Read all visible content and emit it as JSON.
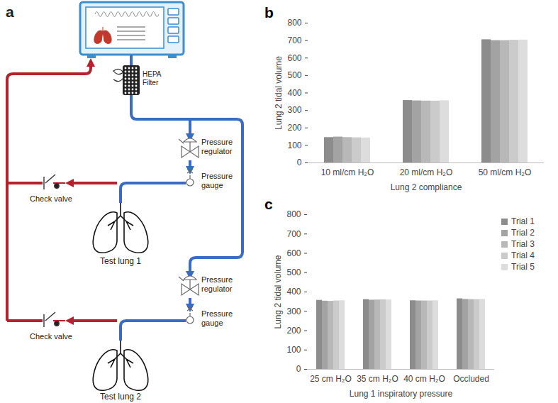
{
  "diagram": {
    "panel_label": "a",
    "components": {
      "filter": "HEPA Filter",
      "regulator_1": "Pressure regulator",
      "gauge_1": "Pressure gauge",
      "check_valve_1": "Check valve",
      "lung_1": "Test lung 1",
      "regulator_2": "Pressure regulator",
      "gauge_2": "Pressure gauge",
      "check_valve_2": "Check valve",
      "lung_2": "Test lung 2"
    }
  },
  "chart_data": [
    {
      "type": "bar",
      "title": "b",
      "xlabel": "Lung 2 compliance",
      "ylabel": "Lung 2 tidal volume",
      "categories": [
        "10 ml/cm H₂O",
        "20 ml/cm H₂O",
        "50 ml/cm H₂O"
      ],
      "series": [
        {
          "name": "Trial 1",
          "color": "#8c8c8c",
          "values": [
            145,
            357,
            705
          ]
        },
        {
          "name": "Trial 2",
          "color": "#a3a3a3",
          "values": [
            148,
            355,
            700
          ]
        },
        {
          "name": "Trial 3",
          "color": "#b8b8b8",
          "values": [
            145,
            354,
            700
          ]
        },
        {
          "name": "Trial 4",
          "color": "#cbcbcb",
          "values": [
            144,
            354,
            702
          ]
        },
        {
          "name": "Trial 5",
          "color": "#dddddd",
          "values": [
            143,
            356,
            703
          ]
        }
      ],
      "ylim": [
        0,
        800
      ],
      "yticks": [
        0,
        100,
        200,
        300,
        400,
        500,
        600,
        700,
        800
      ],
      "grid": false
    },
    {
      "type": "bar",
      "title": "c",
      "xlabel": "Lung 1 inspiratory pressure",
      "ylabel": "Lung 2 tidal volume",
      "categories": [
        "25 cm H₂O",
        "35 cm H₂O",
        "40 cm H₂O",
        "Occluded"
      ],
      "series": [
        {
          "name": "Trial 1",
          "color": "#8c8c8c",
          "values": [
            357,
            361,
            355,
            365
          ]
        },
        {
          "name": "Trial 2",
          "color": "#a3a3a3",
          "values": [
            353,
            358,
            354,
            362
          ]
        },
        {
          "name": "Trial 3",
          "color": "#b8b8b8",
          "values": [
            352,
            359,
            354,
            361
          ]
        },
        {
          "name": "Trial 4",
          "color": "#cbcbcb",
          "values": [
            354,
            360,
            354,
            361
          ]
        },
        {
          "name": "Trial 5",
          "color": "#dddddd",
          "values": [
            355,
            359,
            355,
            362
          ]
        }
      ],
      "ylim": [
        0,
        800
      ],
      "yticks": [
        0,
        100,
        200,
        300,
        400,
        500,
        600,
        700,
        800
      ],
      "grid": false,
      "legend": "right"
    }
  ]
}
